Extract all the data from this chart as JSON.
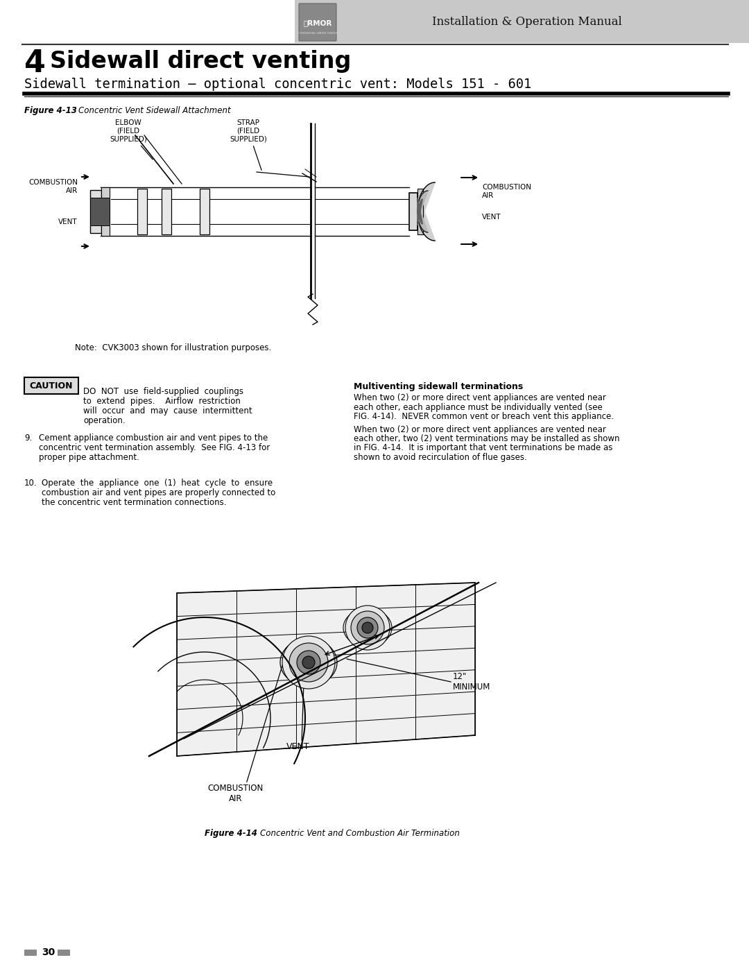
{
  "page_title_num": "4",
  "page_title": "Sidewall direct venting",
  "page_subtitle": "Sidewall termination – optional concentric vent: Models 151 - 601",
  "fig13_caption_bold": "Figure 4-13",
  "fig13_caption_normal": "Concentric Vent Sidewall Attachment",
  "fig14_caption_bold": "Figure 4-14",
  "fig14_caption_normal": "Concentric Vent and Combustion Air Termination",
  "header_text": "Installation & Operation Manual",
  "note_text": "Note:  CVK3003 shown for illustration purposes.",
  "caution_label": "CAUTION",
  "caution_line1": "DO  NOT  use  field-supplied  couplings",
  "caution_line2": "to  extend  pipes.    Airflow  restriction",
  "caution_line3": "will  occur  and  may  cause  intermittent",
  "caution_line4": "operation.",
  "multiventing_title": "Multiventing sidewall terminations",
  "mv_p1_line1": "When two (2) or more direct vent appliances are vented near",
  "mv_p1_line2": "each other, each appliance must be individually vented (see",
  "mv_p1_line3": "FIG. 4-14).  NEVER common vent or breach vent this appliance.",
  "mv_p2_line1": "When two (2) or more direct vent appliances are vented near",
  "mv_p2_line2": "each other, two (2) vent terminations may be installed as shown",
  "mv_p2_line3": "in FIG. 4-14.  It is important that vent terminations be made as",
  "mv_p2_line4": "shown to avoid recirculation of flue gases.",
  "step9_line1": "Cement appliance combustion air and vent pipes to the",
  "step9_line2": "concentric vent termination assembly.  See FIG. 4-13 for",
  "step9_line3": "proper pipe attachment.",
  "step10_line1": "Operate  the  appliance  one  (1)  heat  cycle  to  ensure",
  "step10_line2": "combustion air and vent pipes are properly connected to",
  "step10_line3": "the concentric vent termination connections.",
  "page_num": "30",
  "bg_color": "#ffffff",
  "text_color": "#000000",
  "header_bg": "#c8c8c8"
}
